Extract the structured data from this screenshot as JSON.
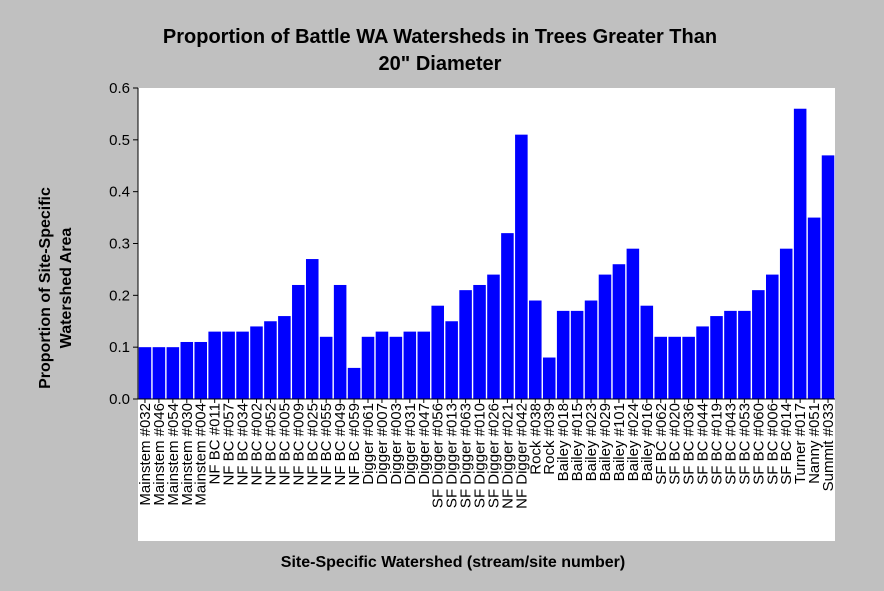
{
  "colors": {
    "background": "#c0c0c0",
    "plot_area": "#ffffff",
    "bar": "#0000ff"
  },
  "chart_data": {
    "type": "bar",
    "title_lines": [
      "Proportion of Battle WA Watersheds in Trees Greater Than",
      "20\" Diameter"
    ],
    "xlabel": "Site-Specific Watershed (stream/site number)",
    "ylabel_lines": [
      "Proportion of Site-Specific",
      "Watershed Area"
    ],
    "ylim": [
      0,
      0.6
    ],
    "yticks": [
      "0.0",
      "0.1",
      "0.2",
      "0.3",
      "0.4",
      "0.5",
      "0.6"
    ],
    "grid": false,
    "legend": "none",
    "categories": [
      "Mainstem #032",
      "Mainstem #046",
      "Mainstem #054",
      "Mainstem #030",
      "Mainstem #004",
      "NF BC #011",
      "NF BC #057",
      "NF BC #034",
      "NF BC #002",
      "NF BC #052",
      "NF BC #005",
      "NF BC #009",
      "NF BC #025",
      "NF BC #055",
      "NF BC #049",
      "NF BC #059",
      "Digger #061",
      "Digger #007",
      "Digger #003",
      "Digger #031",
      "Digger #047",
      "SF Digger #056",
      "SF Digger #013",
      "SF Digger #063",
      "SF Digger #010",
      "SF Digger #026",
      "NF Digger #021",
      "NF Digger #042",
      "Rock #038",
      "Rock #039",
      "Bailey #018",
      "Bailey #015",
      "Bailey #023",
      "Bailey #029",
      "Bailey #101",
      "Bailey #024",
      "Bailey #016",
      "SF BC #062",
      "SF BC #020",
      "SF BC #036",
      "SF BC #044",
      "SF BC #019",
      "SF BC #043",
      "SF BC #053",
      "SF BC #060",
      "SF BC #006",
      "SF BC #014",
      "Turner #017",
      "Nanny #051",
      "Summit #033"
    ],
    "values": [
      0.1,
      0.1,
      0.1,
      0.11,
      0.11,
      0.13,
      0.13,
      0.13,
      0.14,
      0.15,
      0.16,
      0.22,
      0.27,
      0.12,
      0.22,
      0.06,
      0.12,
      0.13,
      0.12,
      0.13,
      0.13,
      0.18,
      0.15,
      0.21,
      0.22,
      0.24,
      0.32,
      0.51,
      0.19,
      0.08,
      0.17,
      0.17,
      0.19,
      0.24,
      0.26,
      0.29,
      0.18,
      0.12,
      0.12,
      0.12,
      0.14,
      0.16,
      0.17,
      0.17,
      0.21,
      0.24,
      0.29,
      0.56,
      0.35,
      0.47
    ]
  }
}
